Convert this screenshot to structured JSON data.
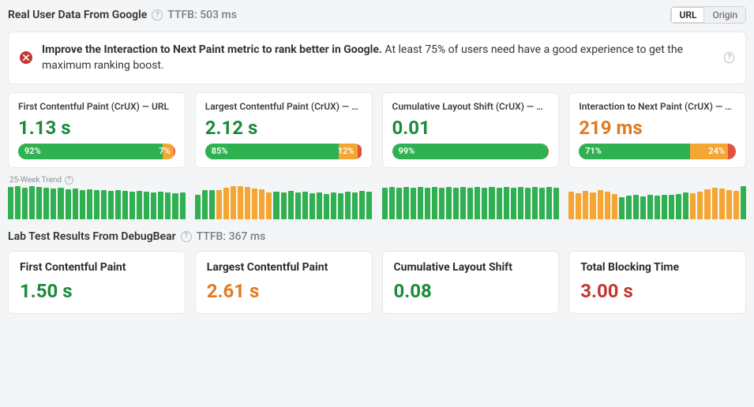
{
  "colors": {
    "green": "#1b8a3a",
    "green_bar": "#30b151",
    "orange": "#e07a1f",
    "orange_bar": "#f5a531",
    "red": "#c0382f",
    "red_bar": "#e15141",
    "text_muted": "#7a7e83"
  },
  "real": {
    "title": "Real User Data From Google",
    "ttfb_label": "TTFB:",
    "ttfb_value": "503 ms",
    "toggle": {
      "url": "URL",
      "origin": "Origin",
      "active": "url"
    }
  },
  "alert": {
    "bold": "Improve the Interaction to Next Paint metric to rank better in Google.",
    "rest": " At least 75% of users need have a good experience to get the maximum ranking boost."
  },
  "crux": [
    {
      "label": "First Contentful Paint (CrUX) — URL",
      "value": "1.13 s",
      "color": "#1b8a3a",
      "dist": {
        "good": 92,
        "ok": 7,
        "poor": 1,
        "good_label": "92%",
        "ok_label": "7%"
      }
    },
    {
      "label": "Largest Contentful Paint (CrUX) — …",
      "value": "2.12 s",
      "color": "#1b8a3a",
      "dist": {
        "good": 85,
        "ok": 12,
        "poor": 3,
        "good_label": "85%",
        "ok_label": "12%"
      }
    },
    {
      "label": "Cumulative Layout Shift (CrUX) — …",
      "value": "0.01",
      "color": "#1b8a3a",
      "dist": {
        "good": 99,
        "ok": 0,
        "poor": 1,
        "good_label": "99%",
        "ok_label": ""
      }
    },
    {
      "label": "Interaction to Next Paint (CrUX) — …",
      "value": "219 ms",
      "color": "#e07a1f",
      "dist": {
        "good": 71,
        "ok": 24,
        "poor": 5,
        "good_label": "71%",
        "ok_label": "24%"
      }
    }
  ],
  "trend": {
    "title": "25-Week Trend",
    "bar_count": 25,
    "series": [
      {
        "heights": [
          96,
          98,
          95,
          100,
          96,
          95,
          92,
          94,
          90,
          92,
          88,
          90,
          86,
          88,
          84,
          86,
          84,
          82,
          84,
          82,
          80,
          82,
          80,
          78,
          80
        ],
        "orange_idx": []
      },
      {
        "heights": [
          74,
          88,
          86,
          88,
          94,
          98,
          100,
          96,
          92,
          90,
          80,
          82,
          80,
          84,
          80,
          82,
          78,
          80,
          76,
          80,
          78,
          82,
          80,
          84,
          82
        ],
        "orange_idx": [
          3,
          4,
          5,
          6,
          7,
          8,
          9,
          10
        ]
      },
      {
        "heights": [
          94,
          96,
          94,
          96,
          94,
          96,
          94,
          96,
          94,
          96,
          94,
          96,
          94,
          96,
          94,
          96,
          94,
          96,
          94,
          96,
          94,
          96,
          94,
          96,
          94
        ],
        "orange_idx": []
      },
      {
        "heights": [
          82,
          78,
          84,
          80,
          86,
          82,
          76,
          66,
          70,
          72,
          68,
          72,
          70,
          74,
          72,
          76,
          80,
          78,
          82,
          90,
          94,
          92,
          88,
          84,
          98
        ],
        "orange_idx": [
          0,
          1,
          2,
          3,
          4,
          5,
          6,
          17,
          18,
          19,
          20,
          21,
          22,
          23
        ]
      }
    ]
  },
  "lab": {
    "title": "Lab Test Results From DebugBear",
    "ttfb_label": "TTFB:",
    "ttfb_value": "367 ms",
    "metrics": [
      {
        "label": "First Contentful Paint",
        "value": "1.50 s",
        "color": "#1b8a3a"
      },
      {
        "label": "Largest Contentful Paint",
        "value": "2.61 s",
        "color": "#e07a1f"
      },
      {
        "label": "Cumulative Layout Shift",
        "value": "0.08",
        "color": "#1b8a3a"
      },
      {
        "label": "Total Blocking Time",
        "value": "3.00 s",
        "color": "#c0382f"
      }
    ]
  }
}
